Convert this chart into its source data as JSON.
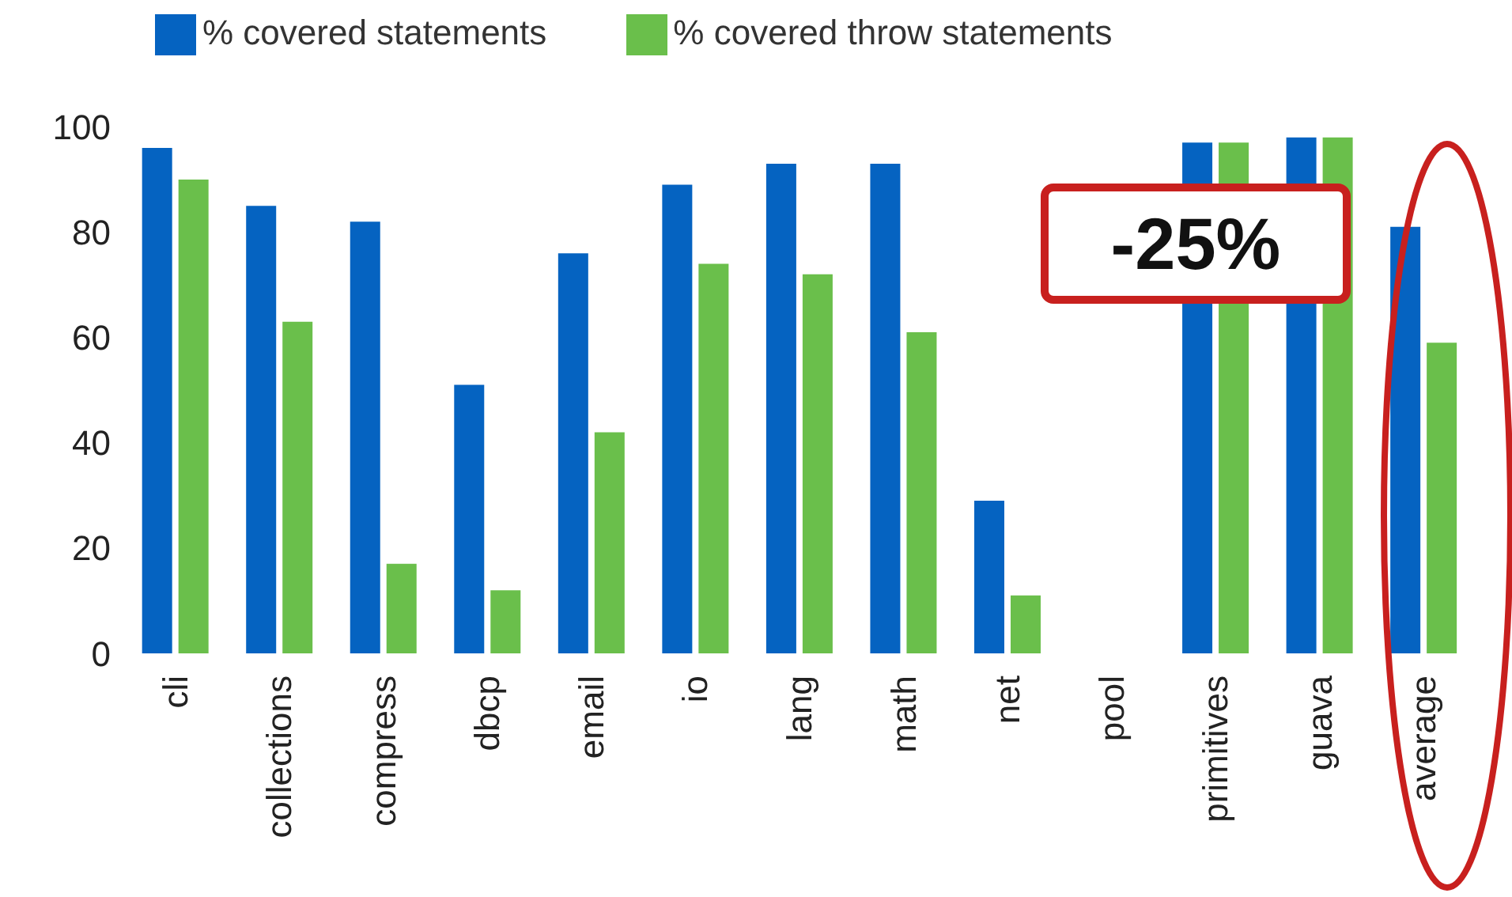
{
  "chart_data": {
    "type": "bar",
    "categories": [
      "cli",
      "collections",
      "compress",
      "dbcp",
      "email",
      "io",
      "lang",
      "math",
      "net",
      "pool",
      "primitives",
      "guava",
      "average"
    ],
    "series": [
      {
        "name": "% covered statements",
        "color": "#0563c1",
        "values": [
          96,
          85,
          82,
          51,
          76,
          89,
          93,
          93,
          29,
          null,
          97,
          98,
          81
        ]
      },
      {
        "name": "% covered throw statements",
        "color": "#6abf4b",
        "values": [
          90,
          63,
          17,
          12,
          42,
          74,
          72,
          61,
          11,
          null,
          97,
          98,
          59
        ]
      }
    ],
    "ylim": [
      0,
      100
    ],
    "yticks": [
      0,
      20,
      40,
      60,
      80,
      100
    ],
    "legend": "top left",
    "annotations": [
      "-25%"
    ]
  }
}
